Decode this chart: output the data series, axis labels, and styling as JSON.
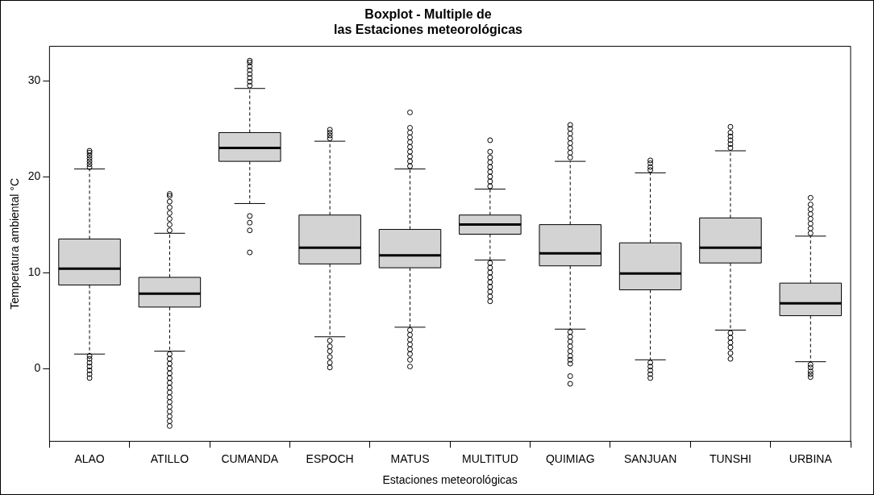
{
  "chart_data": {
    "type": "box",
    "title": "Boxplot - Multiple de\nlas Estaciones meteorológicas",
    "xlabel": "Estaciones meteorológicas",
    "ylabel": "Temperatura ambiental °C",
    "categories": [
      "ALAO",
      "ATILLO",
      "CUMANDA",
      "ESPOCH",
      "MATUS",
      "MULTITUD",
      "QUIMIAG",
      "SANJUAN",
      "TUNSHI",
      "URBINA"
    ],
    "color": "#d3d3d3",
    "ylim": [
      -7.6,
      33.6
    ],
    "yticks": [
      0,
      10,
      20,
      30
    ],
    "grid": false,
    "legend": false,
    "boxes": [
      {
        "low": 1.5,
        "q1": 8.7,
        "median": 10.4,
        "q3": 13.5,
        "high": 20.8,
        "outliers": [
          21.0,
          21.3,
          21.6,
          21.9,
          22.2,
          22.5,
          22.7,
          1.3,
          1.0,
          0.6,
          0.2,
          -0.2,
          -0.6,
          -1.0
        ]
      },
      {
        "low": 1.8,
        "q1": 6.4,
        "median": 7.8,
        "q3": 9.5,
        "high": 14.1,
        "outliers": [
          14.4,
          15.0,
          15.6,
          16.2,
          16.8,
          17.4,
          18.0,
          18.2,
          1.5,
          1.0,
          0.5,
          0,
          -0.5,
          -1.0,
          -1.5,
          -2.0,
          -2.5,
          -3.0,
          -3.5,
          -4.0,
          -4.5,
          -5.0,
          -5.5,
          -6.0
        ]
      },
      {
        "low": 17.2,
        "q1": 21.6,
        "median": 23.0,
        "q3": 24.6,
        "high": 29.2,
        "outliers": [
          29.5,
          29.9,
          30.3,
          30.7,
          31.1,
          31.5,
          31.9,
          32.1,
          15.9,
          15.2,
          14.4,
          12.1
        ]
      },
      {
        "low": 3.3,
        "q1": 10.9,
        "median": 12.6,
        "q3": 16.0,
        "high": 23.7,
        "outliers": [
          24.0,
          24.3,
          24.6,
          24.9,
          2.9,
          2.3,
          1.8,
          1.2,
          0.6,
          0.1
        ]
      },
      {
        "low": 4.3,
        "q1": 10.5,
        "median": 11.8,
        "q3": 14.5,
        "high": 20.8,
        "outliers": [
          21.1,
          21.6,
          22.1,
          22.6,
          23.1,
          23.6,
          24.1,
          24.6,
          25.1,
          26.7,
          4.0,
          3.5,
          3.0,
          2.5,
          2.0,
          1.5,
          0.9,
          0.2
        ]
      },
      {
        "low": 11.3,
        "q1": 14.0,
        "median": 15.0,
        "q3": 16.0,
        "high": 18.7,
        "outliers": [
          19.0,
          19.5,
          20.0,
          20.5,
          21.0,
          21.5,
          22.0,
          22.6,
          23.8,
          11.0,
          10.5,
          10.0,
          9.5,
          9.0,
          8.5,
          8.0,
          7.5,
          7.0
        ]
      },
      {
        "low": 4.1,
        "q1": 10.7,
        "median": 12.0,
        "q3": 15.0,
        "high": 21.6,
        "outliers": [
          22.0,
          22.5,
          23.0,
          23.5,
          24.0,
          24.5,
          25.0,
          25.4,
          3.8,
          3.3,
          2.8,
          2.3,
          1.8,
          1.3,
          0.9,
          0.5,
          -0.8,
          -1.6
        ]
      },
      {
        "low": 0.9,
        "q1": 8.2,
        "median": 9.9,
        "q3": 13.1,
        "high": 20.4,
        "outliers": [
          20.7,
          21.0,
          21.4,
          21.7,
          0.6,
          0.2,
          -0.2,
          -0.6,
          -1.0
        ]
      },
      {
        "low": 4.0,
        "q1": 11.0,
        "median": 12.6,
        "q3": 15.7,
        "high": 22.7,
        "outliers": [
          23.0,
          23.4,
          23.8,
          24.2,
          24.6,
          25.2,
          3.7,
          3.2,
          2.7,
          2.2,
          1.6,
          1.0
        ]
      },
      {
        "low": 0.7,
        "q1": 5.5,
        "median": 6.8,
        "q3": 8.9,
        "high": 13.8,
        "outliers": [
          14.1,
          14.6,
          15.1,
          15.6,
          16.1,
          16.6,
          17.1,
          17.8,
          0.4,
          0.1,
          -0.3,
          -0.6,
          -0.9
        ]
      }
    ]
  }
}
